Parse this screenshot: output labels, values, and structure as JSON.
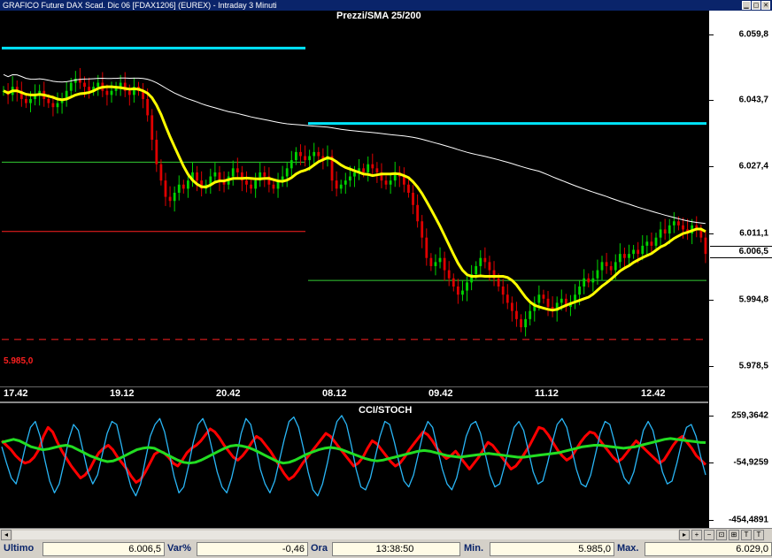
{
  "window": {
    "title": "GRAFICO Future DAX Scad. Dic 06 [FDAX1206] (EUREX) - Intraday 3 Minuti",
    "btn_min": "▁",
    "btn_max": "▢",
    "btn_close": "✕"
  },
  "price_pane": {
    "title": "Prezzi/SMA 25/200",
    "support_label": "5.985,0",
    "current_value": "6.006,5",
    "colors": {
      "up": "#00d400",
      "down": "#e00000",
      "sma25": "#ffff00",
      "sma200": "#ffffff",
      "resistance": "#00e5ff",
      "support": "#ff2020",
      "mid": "#33cc33"
    }
  },
  "indicator_pane": {
    "title": "CCI/STOCH",
    "colors": {
      "cci": "#ff0000",
      "stoch_k": "#29b6f6",
      "stoch_d": "#22dd22"
    }
  },
  "chart_data": [
    {
      "type": "candlestick",
      "title": "Prezzi/SMA 25/200",
      "ylim": [
        5975.0,
        6062.0
      ],
      "y_ticks": [
        "6.059,8",
        "6.043,7",
        "6.027,4",
        "6.011,1",
        "5.994,8",
        "5.978,5"
      ],
      "x_ticks": [
        "17.42",
        "19.12",
        "20.42",
        "08.12",
        "09.42",
        "11.12",
        "12.42"
      ],
      "current_price": 6006.5,
      "levels": [
        {
          "value": 6056.5,
          "color": "#00e5ff",
          "segment": "session-1"
        },
        {
          "value": 6038.0,
          "color": "#00e5ff",
          "segment": "session-2"
        },
        {
          "value": 6028.5,
          "color": "#33cc33",
          "segment": "session-1"
        },
        {
          "value": 6011.5,
          "color": "#ff2020",
          "segment": "session-1"
        },
        {
          "value": 5999.5,
          "color": "#33cc33",
          "segment": "session-2"
        },
        {
          "value": 5985.0,
          "color": "#ff2020",
          "segment": "full",
          "dashed": true
        }
      ],
      "close_series": [
        6046,
        6045,
        6047,
        6046,
        6044,
        6043,
        6044,
        6045,
        6046,
        6044,
        6043,
        6042,
        6043,
        6044,
        6046,
        6048,
        6049,
        6048,
        6047,
        6046,
        6047,
        6048,
        6046,
        6045,
        6046,
        6047,
        6048,
        6046,
        6045,
        6047,
        6046,
        6044,
        6040,
        6034,
        6028,
        6024,
        6020,
        6019,
        6021,
        6023,
        6022,
        6024,
        6026,
        6024,
        6022,
        6023,
        6025,
        6026,
        6024,
        6023,
        6025,
        6027,
        6026,
        6024,
        6023,
        6022,
        6024,
        6026,
        6025,
        6023,
        6022,
        6024,
        6025,
        6027,
        6029,
        6031,
        6030,
        6029,
        6030,
        6031,
        6030,
        6029,
        6030,
        6024,
        6022,
        6023,
        6024,
        6025,
        6026,
        6027,
        6026,
        6028,
        6027,
        6026,
        6024,
        6023,
        6024,
        6026,
        6025,
        6023,
        6021,
        6018,
        6014,
        6010,
        6005,
        6003,
        6004,
        6005,
        6002,
        6000,
        5998,
        5996,
        5997,
        5999,
        6001,
        6003,
        6005,
        6004,
        6002,
        6000,
        5998,
        5996,
        5994,
        5992,
        5990,
        5988,
        5990,
        5992,
        5994,
        5996,
        5995,
        5993,
        5992,
        5994,
        5995,
        5993,
        5994,
        5996,
        5998,
        6000,
        5999,
        6000,
        6002,
        6004,
        6003,
        6002,
        6004,
        6006,
        6005,
        6006,
        6007,
        6006,
        6008,
        6009,
        6008,
        6010,
        6012,
        6011,
        6013,
        6014,
        6013,
        6012,
        6011,
        6013,
        6012,
        6010,
        6006
      ]
    },
    {
      "type": "line",
      "title": "CCI/STOCH",
      "ylim": [
        -454.4891,
        259.3642
      ],
      "y_ticks": [
        "259,3642",
        "-54,9259",
        "-454,4891"
      ],
      "series": [
        {
          "name": "",
          "role": "cci",
          "values": [
            90,
            60,
            30,
            -10,
            -40,
            -60,
            -50,
            -20,
            30,
            120,
            180,
            150,
            80,
            20,
            -30,
            -80,
            -120,
            -160,
            -140,
            -100,
            -40,
            10,
            40,
            60,
            30,
            -20,
            -60,
            -100,
            -150,
            -190,
            -170,
            -120,
            -60,
            0,
            20,
            10,
            -20,
            -60,
            -80,
            -40,
            10,
            40,
            60,
            90,
            130,
            170,
            150,
            110,
            60,
            20,
            -20,
            -40,
            -10,
            30,
            80,
            120,
            100,
            60,
            20,
            -30,
            -80,
            -130,
            -170,
            -150,
            -110,
            -60,
            -20,
            20,
            60,
            100,
            140,
            120,
            80,
            40,
            0,
            -40,
            -80,
            -60,
            -20,
            40,
            90,
            70,
            30,
            -10,
            -50,
            -80,
            -60,
            -20,
            30,
            70,
            110,
            150,
            130,
            90,
            40,
            0,
            -30,
            -10,
            20,
            -20,
            -60,
            -100,
            -60,
            -20,
            30,
            80,
            60,
            20,
            -20,
            -60,
            -100,
            -80,
            -40,
            10,
            60,
            120,
            180,
            170,
            130,
            80,
            30,
            -10,
            -40,
            -20,
            30,
            80,
            120,
            150,
            140,
            100,
            60,
            20,
            -20,
            -50,
            -30,
            10,
            50,
            90,
            60,
            30,
            0,
            -30,
            -60,
            -40,
            10,
            60,
            100,
            120,
            80,
            40,
            -10,
            -40,
            -70
          ]
        },
        {
          "name": "",
          "role": "stoch_k",
          "values": [
            50,
            -60,
            -160,
            -200,
            -80,
            60,
            180,
            220,
            120,
            -40,
            -180,
            -260,
            -200,
            -60,
            100,
            200,
            160,
            20,
            -120,
            -200,
            -140,
            0,
            140,
            220,
            200,
            60,
            -100,
            -220,
            -280,
            -200,
            -40,
            120,
            200,
            240,
            150,
            0,
            -150,
            -260,
            -220,
            -80,
            80,
            200,
            240,
            160,
            20,
            -120,
            -220,
            -260,
            -160,
            -20,
            140,
            240,
            200,
            60,
            -100,
            -200,
            -260,
            -180,
            -40,
            100,
            220,
            250,
            180,
            40,
            -120,
            -240,
            -280,
            -200,
            -60,
            100,
            220,
            260,
            200,
            60,
            -100,
            -220,
            -240,
            -160,
            -20,
            120,
            220,
            200,
            80,
            -60,
            -180,
            -220,
            -140,
            0,
            140,
            220,
            180,
            40,
            -100,
            -200,
            -240,
            -160,
            -20,
            120,
            200,
            220,
            140,
            0,
            -140,
            -220,
            -200,
            -80,
            60,
            180,
            220,
            160,
            20,
            -120,
            -200,
            -180,
            -60,
            80,
            200,
            240,
            180,
            40,
            -100,
            -200,
            -220,
            -140,
            0,
            140,
            220,
            200,
            80,
            -60,
            -160,
            -200,
            -120,
            20,
            160,
            220,
            160,
            20,
            -120,
            -200,
            -180,
            -60,
            80,
            180,
            200,
            120,
            -20,
            -140
          ]
        },
        {
          "name": "",
          "role": "stoch_d",
          "values": [
            80,
            90,
            100,
            90,
            70,
            50,
            40,
            30,
            35,
            45,
            55,
            60,
            50,
            30,
            10,
            -10,
            -25,
            -40,
            -50,
            -45,
            -30,
            -10,
            10,
            30,
            40,
            45,
            40,
            20,
            0,
            -20,
            -40,
            -55,
            -60,
            -55,
            -40,
            -20,
            0,
            20,
            40,
            55,
            60,
            55,
            45,
            30,
            10,
            -10,
            -30,
            -50,
            -60,
            -55,
            -40,
            -20,
            0,
            15,
            30,
            40,
            45,
            40,
            30,
            15,
            0,
            -15,
            -30,
            -40,
            -45,
            -40,
            -30,
            -20,
            -10,
            0,
            10,
            20,
            25,
            20,
            10,
            0,
            -10,
            -15,
            -20,
            -15,
            -10,
            -5,
            0,
            5,
            0,
            -5,
            -10,
            -15,
            -20,
            -20,
            -15,
            -10,
            -5,
            0,
            5,
            10,
            20,
            30,
            40,
            50,
            55,
            60,
            60,
            55,
            50,
            45,
            40,
            45,
            50,
            60,
            70,
            80,
            90,
            100,
            105,
            100,
            95,
            90,
            85,
            80,
            78
          ]
        }
      ]
    }
  ],
  "statusbar": {
    "last_label": "Ultimo",
    "last_value": "6.006,5",
    "var_label": "Var%",
    "var_value": "-0,46",
    "time_label": "Ora",
    "time_value": "13:38:50",
    "min_label": "Min.",
    "min_value": "5.985,0",
    "max_label": "Max.",
    "max_value": "6.029,0"
  },
  "toolbar": {
    "nav_left": "◂",
    "nav_right": "▸",
    "plus": "+",
    "minus": "−",
    "tools": [
      "⊡",
      "⊞",
      "T"
    ]
  }
}
